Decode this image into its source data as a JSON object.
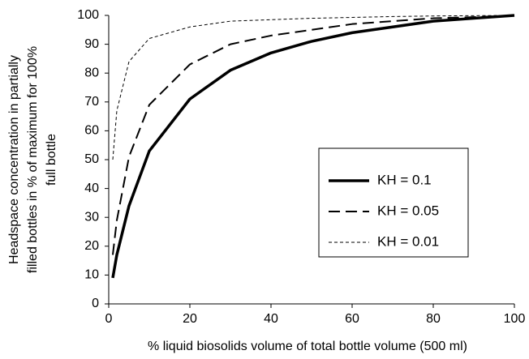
{
  "chart_data": {
    "type": "line",
    "xlabel": "% liquid biosolids volume of total bottle volume (500 ml)",
    "ylabel": [
      "Headspace concentration in partially",
      "filled bottles in % of maximum for 100%",
      "full bottle"
    ],
    "x": [
      1,
      2,
      5,
      10,
      20,
      30,
      40,
      50,
      60,
      70,
      80,
      90,
      100
    ],
    "series": [
      {
        "name": "KH = 0.1",
        "color": "#000000",
        "linewidth": 3.5,
        "dash": "none",
        "values": [
          9,
          17,
          34,
          53,
          71,
          81,
          87,
          91,
          94,
          96,
          98,
          99,
          100
        ]
      },
      {
        "name": "KH = 0.05",
        "color": "#000000",
        "linewidth": 2,
        "dash": "14 7",
        "values": [
          17,
          29,
          51,
          69,
          83,
          90,
          93,
          95,
          97,
          98,
          99,
          99.4,
          100
        ]
      },
      {
        "name": "KH = 0.01",
        "color": "#000000",
        "linewidth": 1,
        "dash": "4 3",
        "values": [
          50,
          67,
          84,
          92,
          96,
          98,
          98.5,
          99,
          99.3,
          99.6,
          99.8,
          99.9,
          100
        ]
      }
    ],
    "xlim": [
      0,
      100
    ],
    "xticks": [
      0,
      20,
      40,
      60,
      80,
      100
    ],
    "ylim": [
      0,
      100
    ],
    "yticks": [
      0,
      10,
      20,
      30,
      40,
      50,
      60,
      70,
      80,
      90,
      100
    ],
    "grid": false,
    "legend": "center-right"
  }
}
